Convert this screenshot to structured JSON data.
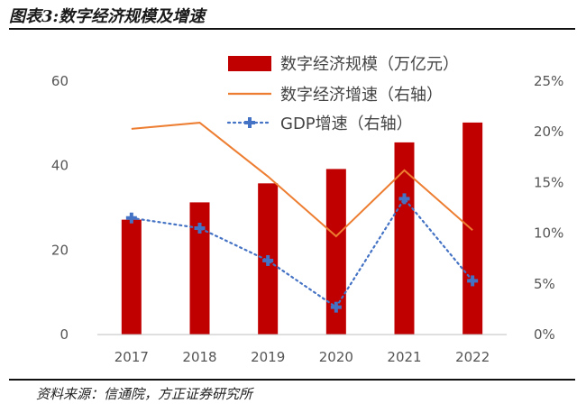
{
  "figure": {
    "title": "图表3:数字经济规模及增速",
    "source": "资料来源：信通院，方正证券研究所"
  },
  "chart_data": {
    "type": "bar",
    "title": "",
    "categories": [
      "2017",
      "2018",
      "2019",
      "2020",
      "2021",
      "2022"
    ],
    "series": [
      {
        "name": "数字经济规模（万亿元）",
        "type": "bar",
        "axis": "left",
        "values": [
          27.2,
          31.3,
          35.8,
          39.2,
          45.5,
          50.2
        ],
        "color": "#c00000"
      },
      {
        "name": "数字经济增速（右轴）",
        "type": "line",
        "axis": "right",
        "values": [
          20.3,
          20.9,
          15.6,
          9.7,
          16.2,
          10.3
        ],
        "color": "#ed7d31"
      },
      {
        "name": "GDP增速（右轴）",
        "type": "line",
        "axis": "right",
        "style": "dotted",
        "marker": "plus",
        "values": [
          11.5,
          10.5,
          7.3,
          2.7,
          13.4,
          5.3
        ],
        "color": "#4472c4"
      }
    ],
    "left_axis": {
      "ticks": [
        "0",
        "20",
        "40",
        "60"
      ],
      "ylim": [
        0,
        60
      ]
    },
    "right_axis": {
      "ticks": [
        "0%",
        "5%",
        "10%",
        "15%",
        "20%",
        "25%"
      ],
      "ylim": [
        0,
        25
      ]
    },
    "legend_position": "top-right",
    "grid": false
  }
}
